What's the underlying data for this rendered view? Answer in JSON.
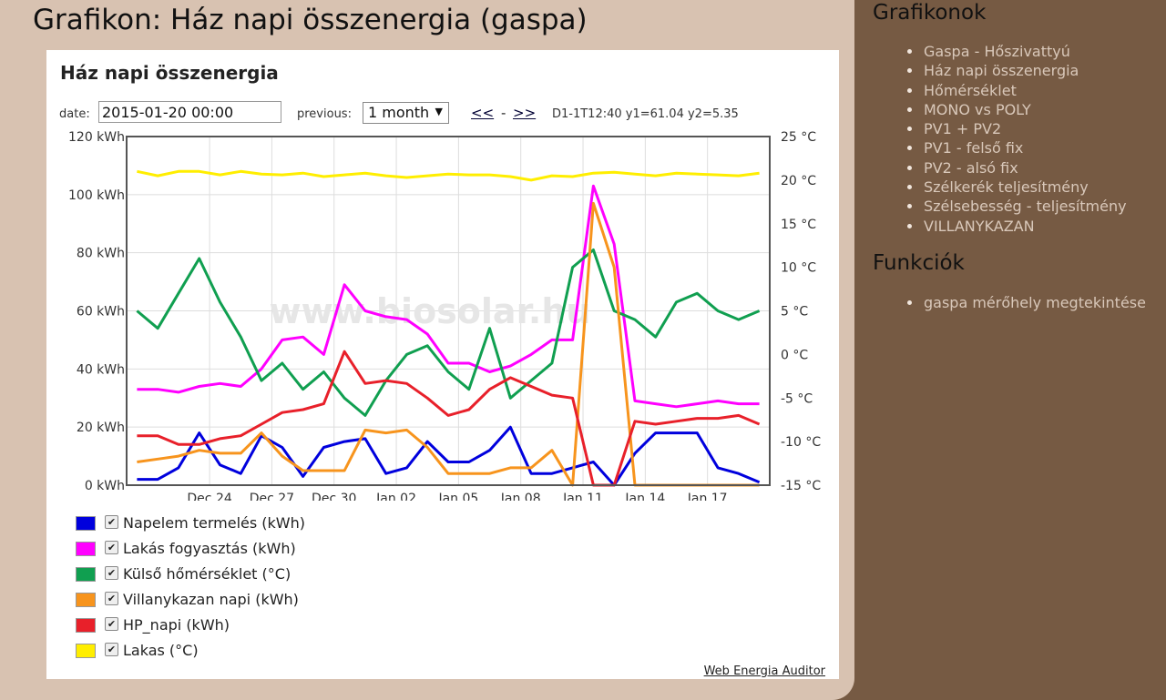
{
  "page_title": "Grafikon: Ház napi összenergia (gaspa)",
  "chart_panel": {
    "title": "Ház napi összenergia",
    "date_label": "date:",
    "date_value": "2015-01-20 00:00",
    "previous_label": "previous:",
    "previous_value": "1 month",
    "nav_prev": "<<",
    "nav_sep": "-",
    "nav_next": ">>",
    "readout": "D1-1T12:40 y1=61.04 y2=5.35",
    "watermark": "www.biosolar.hu",
    "footer_link": "Web Energia Auditor"
  },
  "sidebar": {
    "graphs_title": "Grafikonok",
    "graphs": [
      "Gaspa - Hőszivattyú",
      "Ház napi összenergia",
      "Hőmérséklet",
      "MONO vs POLY",
      "PV1 + PV2",
      "PV1 - felső fix",
      "PV2 - alsó fix",
      "Szélkerék teljesítmény",
      "Szélsebesség - teljesítmény",
      "VILLANYKAZAN"
    ],
    "functions_title": "Funkciók",
    "functions": [
      "gaspa mérőhely megtekintése"
    ]
  },
  "chart_data": {
    "type": "line",
    "title": "Ház napi összenergia",
    "x": [
      "2014-12-20",
      "2014-12-21",
      "2014-12-22",
      "2014-12-23",
      "2014-12-24",
      "2014-12-25",
      "2014-12-26",
      "2014-12-27",
      "2014-12-28",
      "2014-12-29",
      "2014-12-30",
      "2014-12-31",
      "2015-01-01",
      "2015-01-02",
      "2015-01-03",
      "2015-01-04",
      "2015-01-05",
      "2015-01-06",
      "2015-01-07",
      "2015-01-08",
      "2015-01-09",
      "2015-01-10",
      "2015-01-11",
      "2015-01-12",
      "2015-01-13",
      "2015-01-14",
      "2015-01-15",
      "2015-01-16",
      "2015-01-17",
      "2015-01-18",
      "2015-01-19"
    ],
    "xticks": [
      "Dec 24",
      "Dec 27",
      "Dec 30",
      "Jan 02",
      "Jan 05",
      "Jan 08",
      "Jan 11",
      "Jan 14",
      "Jan 17"
    ],
    "xtick_dates": [
      "2014-12-24",
      "2014-12-27",
      "2014-12-30",
      "2015-01-02",
      "2015-01-05",
      "2015-01-08",
      "2015-01-11",
      "2015-01-14",
      "2015-01-17"
    ],
    "y1_ticks": [
      "0 kWh",
      "20 kWh",
      "40 kWh",
      "60 kWh",
      "80 kWh",
      "100 kWh",
      "120 kWh"
    ],
    "y1lim": [
      0,
      120
    ],
    "y2_ticks": [
      "-15 °C",
      "-10 °C",
      "-5 °C",
      "0 °C",
      "5 °C",
      "10 °C",
      "15 °C",
      "20 °C",
      "25 °C"
    ],
    "y2lim": [
      -15,
      25
    ],
    "grid": true,
    "legend_position": "bottom",
    "series": [
      {
        "name": "Napelem termelés (kWh)",
        "axis": "y1",
        "color": "#0000dd",
        "values": [
          2,
          2,
          6,
          18,
          7,
          4,
          17,
          13,
          3,
          13,
          15,
          16,
          4,
          6,
          15,
          8,
          8,
          12,
          20,
          4,
          4,
          6,
          8,
          0,
          11,
          18,
          18,
          18,
          6,
          4,
          1
        ]
      },
      {
        "name": "Lakás fogyasztás (kWh)",
        "axis": "y1",
        "color": "#ff00ff",
        "values": [
          33,
          33,
          32,
          34,
          35,
          34,
          40,
          50,
          51,
          45,
          69,
          60,
          58,
          57,
          52,
          42,
          42,
          39,
          41,
          45,
          50,
          50,
          103,
          83,
          29,
          28,
          27,
          28,
          29,
          28,
          28
        ]
      },
      {
        "name": "Külső hőmérséklet (°C)",
        "axis": "y2",
        "color": "#109f50",
        "values": [
          5,
          3,
          7,
          11,
          6,
          2,
          -3,
          -1,
          -4,
          -2,
          -5,
          -7,
          -3,
          0,
          1,
          -2,
          -4,
          3,
          -5,
          -3,
          -1,
          10,
          12,
          5,
          4,
          2,
          6,
          7,
          5,
          4,
          5
        ]
      },
      {
        "name": "Villanykazan napi (kWh)",
        "axis": "y1",
        "color": "#f7941d",
        "values": [
          8,
          9,
          10,
          12,
          11,
          11,
          18,
          10,
          5,
          5,
          5,
          19,
          18,
          19,
          13,
          4,
          4,
          4,
          6,
          6,
          12,
          0,
          97,
          75,
          0,
          0,
          0,
          0,
          0,
          0,
          0
        ]
      },
      {
        "name": "HP_napi (kWh)",
        "axis": "y1",
        "color": "#e8202a",
        "values": [
          17,
          17,
          14,
          14,
          16,
          17,
          21,
          25,
          26,
          28,
          46,
          35,
          36,
          35,
          30,
          24,
          26,
          33,
          37,
          34,
          31,
          30,
          0,
          0,
          22,
          21,
          22,
          23,
          23,
          24,
          21
        ]
      },
      {
        "name": "Lakas (°C)",
        "axis": "y2",
        "color": "#ffee00",
        "values": [
          21,
          20.5,
          21,
          21,
          20.6,
          21,
          20.7,
          20.6,
          20.8,
          20.4,
          20.6,
          20.8,
          20.5,
          20.3,
          20.5,
          20.7,
          20.6,
          20.6,
          20.4,
          20,
          20.5,
          20.4,
          20.8,
          20.9,
          20.7,
          20.5,
          20.8,
          20.7,
          20.6,
          20.5,
          20.8
        ]
      }
    ]
  }
}
